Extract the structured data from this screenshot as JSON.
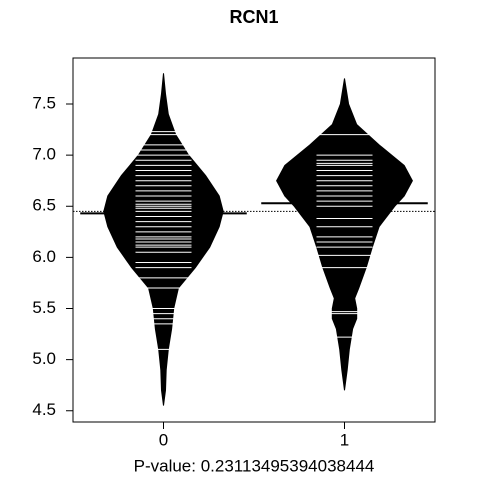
{
  "chart_data": {
    "type": "beanplot",
    "title": "RCN1",
    "xlabel": "P-value: 0.23113495394038444",
    "categories": [
      "0",
      "1"
    ],
    "ylim": [
      4.39,
      7.95
    ],
    "yticks": [
      4.5,
      {
        "value": 5,
        "label": "5.0"
      },
      5.5,
      {
        "value": 6,
        "label": "6.0"
      },
      6.5,
      {
        "value": 7,
        "label": "7.0"
      },
      7.5
    ],
    "fill": "#000000",
    "beanline_color": "#ffffff",
    "overall_mean": 6.45,
    "beans": [
      {
        "density_y": [
          7.8,
          7.6,
          7.4,
          7.2,
          7.0,
          6.8,
          6.6,
          6.45,
          6.3,
          6.1,
          5.9,
          5.7,
          5.5,
          5.3,
          5.1,
          4.9,
          4.7,
          4.55
        ],
        "density": [
          0,
          0.03,
          0.07,
          0.18,
          0.37,
          0.62,
          0.82,
          0.88,
          0.82,
          0.68,
          0.47,
          0.22,
          0.15,
          0.12,
          0.07,
          0.04,
          0.03,
          0
        ],
        "values": [
          5.1,
          5.35,
          5.4,
          5.45,
          5.5,
          5.7,
          5.8,
          5.9,
          5.95,
          6.05,
          6.1,
          6.12,
          6.15,
          6.18,
          6.2,
          6.25,
          6.3,
          6.35,
          6.4,
          6.45,
          6.48,
          6.5,
          6.52,
          6.55,
          6.6,
          6.65,
          6.7,
          6.75,
          6.8,
          6.85,
          6.9,
          6.95,
          7.0,
          7.05,
          7.1,
          7.2,
          7.23
        ],
        "mean": 6.43
      },
      {
        "density_y": [
          7.75,
          7.5,
          7.3,
          7.1,
          6.9,
          6.75,
          6.6,
          6.5,
          6.3,
          6.1,
          5.9,
          5.7,
          5.6,
          5.5,
          5.4,
          5.3,
          5.1,
          4.9,
          4.7
        ],
        "density": [
          0,
          0.06,
          0.18,
          0.51,
          0.88,
          1,
          0.88,
          0.74,
          0.51,
          0.41,
          0.32,
          0.21,
          0.15,
          0.18,
          0.18,
          0.12,
          0.07,
          0.04,
          0
        ],
        "values": [
          5.22,
          5.45,
          5.47,
          5.9,
          6.02,
          6.1,
          6.15,
          6.2,
          6.3,
          6.38,
          6.5,
          6.55,
          6.6,
          6.65,
          6.7,
          6.75,
          6.8,
          6.85,
          6.9,
          6.92,
          6.95,
          7.0,
          7.2
        ],
        "mean": 6.53
      }
    ]
  }
}
